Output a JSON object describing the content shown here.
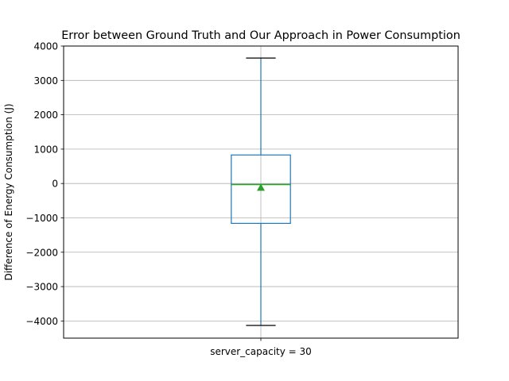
{
  "chart_data": {
    "type": "box",
    "title": "Error between Ground Truth and Our Approach in Power Consumption",
    "xlabel": "",
    "ylabel": "Difference of Energy Consumption (J)",
    "categories": [
      "server_capacity = 30"
    ],
    "ylim": [
      -4500,
      4000
    ],
    "yticks": [
      4000,
      3000,
      2000,
      1000,
      0,
      -1000,
      -2000,
      -3000,
      -4000
    ],
    "ytick_labels": [
      "4000",
      "3000",
      "2000",
      "1000",
      "0",
      "−1000",
      "−2000",
      "−3000",
      "−4000"
    ],
    "grid": true,
    "boxes": [
      {
        "category": "server_capacity = 30",
        "whisker_low": -4130,
        "q1": -1160,
        "median": -30,
        "q3": 830,
        "whisker_high": 3650,
        "mean": -120
      }
    ],
    "colors": {
      "box": "#1f77b4",
      "median": "#2ca02c",
      "mean": "#2ca02c",
      "caps": "#000000",
      "grid": "#b0b0b0"
    }
  }
}
